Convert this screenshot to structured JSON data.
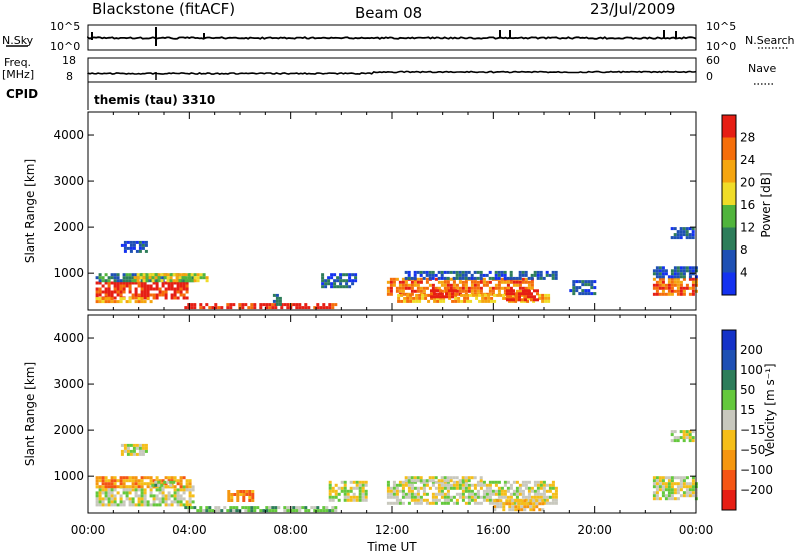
{
  "header": {
    "title": "Blackstone (fitACF)",
    "beam": "Beam 08",
    "date": "23/Jul/2009"
  },
  "top_panel": {
    "left_label": "N.Sky",
    "left_ticks": [
      "10^5",
      "10^0"
    ],
    "right_label": "N.Search",
    "right_ticks": [
      "10^5",
      "10^0"
    ]
  },
  "freq_panel": {
    "left_label_1": "Freq.",
    "left_label_2": "[MHz]",
    "left_ticks": [
      "18",
      "8"
    ],
    "right_label": "Nave",
    "right_ticks": [
      "60",
      "0"
    ]
  },
  "cpid": {
    "label": "CPID",
    "value": "themis (tau) 3310"
  },
  "colors": {
    "power_scale": [
      "#1432f0",
      "#1e50b4",
      "#2d7d5a",
      "#50b43c",
      "#f0dc28",
      "#f5a50f",
      "#f56e0a",
      "#e61e14"
    ],
    "velocity_scale": [
      "#e61e14",
      "#f55514",
      "#f5960f",
      "#f5be19",
      "#c8c8be",
      "#64c83c",
      "#2d7d5a",
      "#1e50b4",
      "#1432c8"
    ],
    "trace": "#000000"
  },
  "chart_data": [
    {
      "type": "heatmap",
      "name": "power-panel",
      "ylabel": "Slant Range [km]",
      "y_ticks": [
        1000,
        2000,
        3000,
        4000
      ],
      "ylim": [
        200,
        4500
      ],
      "colorbar_label": "Power [dB]",
      "colorbar_ticks": [
        4,
        8,
        12,
        16,
        20,
        24,
        28
      ],
      "colorbar_range": [
        0,
        32
      ],
      "regions": [
        {
          "t": [
            0.3,
            3.9
          ],
          "r": [
            480,
            820
          ],
          "level": 7
        },
        {
          "t": [
            0.3,
            4.2
          ],
          "r": [
            820,
            1000
          ],
          "level": 2
        },
        {
          "t": [
            0.3,
            2.5
          ],
          "r": [
            400,
            480
          ],
          "level": 5
        },
        {
          "t": [
            3.8,
            9.8
          ],
          "r": [
            220,
            350
          ],
          "level": 7
        },
        {
          "t": [
            1.8,
            4.7
          ],
          "r": [
            850,
            1000
          ],
          "level": 4
        },
        {
          "t": [
            9.2,
            10.6
          ],
          "r": [
            700,
            1000
          ],
          "level": 1
        },
        {
          "t": [
            11.8,
            17.5
          ],
          "r": [
            550,
            900
          ],
          "level": 6
        },
        {
          "t": [
            12.2,
            18.2
          ],
          "r": [
            400,
            550
          ],
          "level": 5
        },
        {
          "t": [
            12.5,
            18.5
          ],
          "r": [
            900,
            1050
          ],
          "level": 1
        },
        {
          "t": [
            13.5,
            14.5
          ],
          "r": [
            500,
            650
          ],
          "level": 7
        },
        {
          "t": [
            16.5,
            17.8
          ],
          "r": [
            400,
            650
          ],
          "level": 7
        },
        {
          "t": [
            19.0,
            20.0
          ],
          "r": [
            550,
            850
          ],
          "level": 1
        },
        {
          "t": [
            22.3,
            24.0
          ],
          "r": [
            550,
            900
          ],
          "level": 6
        },
        {
          "t": [
            22.3,
            24.0
          ],
          "r": [
            900,
            1150
          ],
          "level": 1
        },
        {
          "t": [
            1.3,
            2.3
          ],
          "r": [
            1500,
            1700
          ],
          "level": 1
        },
        {
          "t": [
            23.0,
            23.9
          ],
          "r": [
            1800,
            2000
          ],
          "level": 1
        },
        {
          "t": [
            7.3,
            7.6
          ],
          "r": [
            330,
            550
          ],
          "level": 1
        }
      ]
    },
    {
      "type": "heatmap",
      "name": "velocity-panel",
      "ylabel": "Slant Range [km]",
      "y_ticks": [
        1000,
        2000,
        3000,
        4000
      ],
      "ylim": [
        200,
        4500
      ],
      "xlabel": "Time UT",
      "x_ticks": [
        "00:00",
        "04:00",
        "08:00",
        "12:00",
        "16:00",
        "20:00",
        "00:00"
      ],
      "xlim": [
        0,
        24
      ],
      "colorbar_label": "Velocity [m s⁻¹]",
      "colorbar_ticks": [
        -200,
        -100,
        -50,
        -15,
        15,
        50,
        100,
        200
      ],
      "regions": [
        {
          "t": [
            0.3,
            4.2
          ],
          "r": [
            350,
            800
          ],
          "level": 4
        },
        {
          "t": [
            0.3,
            4.0
          ],
          "r": [
            800,
            1000
          ],
          "level": 2
        },
        {
          "t": [
            2.5,
            3.4
          ],
          "r": [
            800,
            900
          ],
          "level": 5
        },
        {
          "t": [
            3.8,
            9.8
          ],
          "r": [
            220,
            350
          ],
          "level": 5
        },
        {
          "t": [
            11.8,
            18.5
          ],
          "r": [
            400,
            900
          ],
          "level": 4
        },
        {
          "t": [
            12.5,
            15.5
          ],
          "r": [
            900,
            1000
          ],
          "level": 4
        },
        {
          "t": [
            16.0,
            18.0
          ],
          "r": [
            300,
            500
          ],
          "level": 3
        },
        {
          "t": [
            22.3,
            24.0
          ],
          "r": [
            500,
            1000
          ],
          "level": 4
        },
        {
          "t": [
            9.5,
            11.0
          ],
          "r": [
            500,
            900
          ],
          "level": 4
        },
        {
          "t": [
            1.3,
            2.3
          ],
          "r": [
            1500,
            1700
          ],
          "level": 4
        },
        {
          "t": [
            23.0,
            23.9
          ],
          "r": [
            1800,
            2000
          ],
          "level": 4
        },
        {
          "t": [
            5.5,
            6.5
          ],
          "r": [
            500,
            700
          ],
          "level": 2
        }
      ]
    }
  ]
}
